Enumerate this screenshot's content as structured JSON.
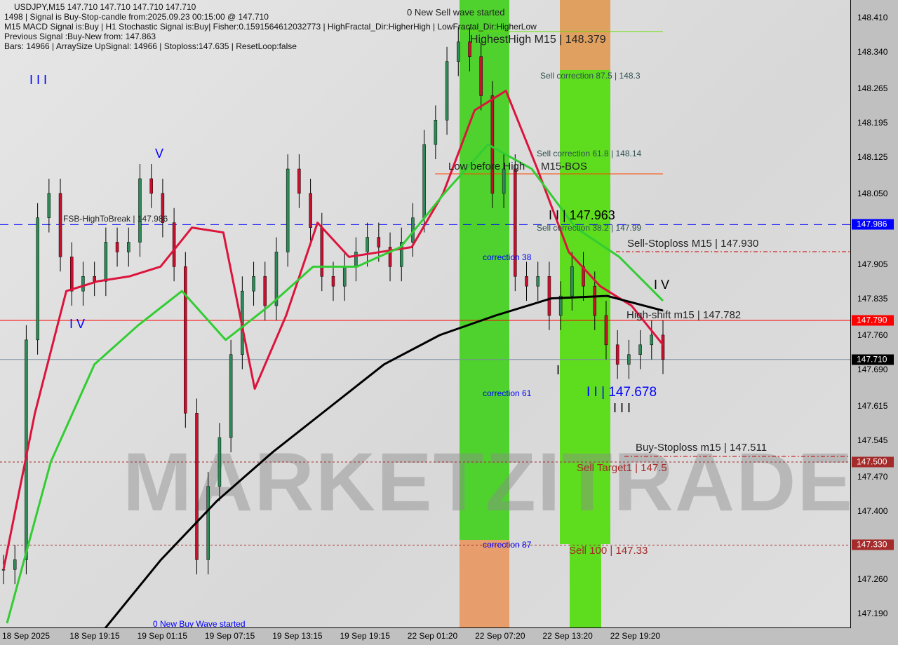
{
  "header": {
    "symbol_line": "USDJPY,M15  147.710 147.710 147.710 147.710",
    "line2": "1498 | Signal is Buy-Stop-candle from:2025.09.23 00:15:00 @ 147.710",
    "line3": "M15 MACD Signal is:Buy | H1 Stochastic Signal is:Buy| Fisher:0.1591564612032773 | HighFractal_Dir:HigherHigh | LowFractal_Dir:HigherLow",
    "line4": "Previous Signal :Buy-New from: 147.863",
    "line5": "Bars: 14966 | ArraySize UpSignal: 14966 | Stoploss:147.635 | ResetLoop:false"
  },
  "watermark": "MARKETZITRADE",
  "annotations": {
    "new_sell_wave": "0 New Sell wave started",
    "new_buy_wave": "0 New Buy Wave started",
    "highest_high": "HighestHigh   M15 | 148.379",
    "sell_corr_875": "Sell correction 87.5 | 148.3",
    "sell_corr_618": "Sell correction 61.8 | 148.14",
    "low_before_high": "Low before High",
    "bos": "M15-BOS",
    "wave_iii_high": "I I | 147.963",
    "sell_corr_382": "Sell correction 38.2 | 147.99",
    "sell_stoploss": "Sell-Stoploss M15 | 147.930",
    "correction38": "correction 38",
    "correction61": "correction 61",
    "correction87": "correction 87",
    "high_shift": "High-shift m15 | 147.782",
    "wave_ii_low": "I I | 147.678",
    "wave_iii": "I I I",
    "wave_iv_r": "I V",
    "wave_i": "I",
    "buy_stoploss": "Buy-Stoploss m15 | 147.511",
    "sell_target1": "Sell Target1 | 147.5",
    "sell_100": "Sell 100 | 147.33",
    "fsb": "FSB-HighToBreak | 147.986",
    "wave_iii_l": "I I I",
    "wave_v_l": "V",
    "wave_iv_l": "I V"
  },
  "price_tags": [
    {
      "value": "147.986",
      "color": "#0000ff"
    },
    {
      "value": "147.790",
      "color": "#ff0000"
    },
    {
      "value": "147.710",
      "color": "#000000"
    },
    {
      "value": "147.500",
      "color": "#a52a2a"
    },
    {
      "value": "147.330",
      "color": "#a52a2a"
    }
  ],
  "chart_data": {
    "type": "candlestick",
    "title": "USDJPY,M15",
    "ylim": [
      147.19,
      148.41
    ],
    "y_ticks": [
      "148.410",
      "148.340",
      "148.265",
      "148.195",
      "148.125",
      "148.050",
      "147.905",
      "147.835",
      "147.760",
      "147.690",
      "147.615",
      "147.545",
      "147.470",
      "147.400",
      "147.260",
      "147.190"
    ],
    "x_ticks": [
      "18 Sep 2025",
      "18 Sep 19:15",
      "19 Sep 01:15",
      "19 Sep 07:15",
      "19 Sep 13:15",
      "19 Sep 19:15",
      "22 Sep 01:20",
      "22 Sep 07:20",
      "22 Sep 13:20",
      "22 Sep 19:20"
    ],
    "close": [
      147.28,
      147.3,
      147.75,
      148.0,
      148.05,
      147.92,
      147.85,
      147.88,
      147.87,
      147.95,
      147.93,
      147.95,
      148.08,
      148.05,
      147.99,
      147.9,
      147.6,
      147.3,
      147.45,
      147.55,
      147.72,
      147.85,
      147.88,
      147.82,
      147.93,
      148.1,
      148.05,
      147.98,
      147.88,
      147.86,
      147.9,
      147.93,
      147.96,
      147.94,
      147.9,
      147.95,
      148.0,
      148.15,
      148.2,
      148.32,
      148.36,
      148.33,
      148.25,
      148.05,
      148.1,
      147.88,
      147.86,
      147.88,
      147.8,
      147.84,
      147.9,
      147.86,
      147.8,
      147.74,
      147.7,
      147.72,
      147.74,
      147.76,
      147.71
    ],
    "series": [
      {
        "color": "#dc143c",
        "values": [
          147.28,
          147.6,
          147.85,
          147.87,
          147.88,
          147.9,
          147.98,
          147.97,
          147.65,
          147.8,
          147.99,
          147.92,
          147.93,
          147.94,
          148.05,
          148.22,
          148.26,
          148.1,
          147.93,
          147.86,
          147.82,
          147.74
        ]
      },
      {
        "color": "#32cd32",
        "values": [
          147.17,
          147.5,
          147.7,
          147.78,
          147.85,
          147.75,
          147.82,
          147.9,
          147.9,
          147.94,
          148.05,
          148.15,
          148.1,
          147.98,
          147.92,
          147.83
        ]
      },
      {
        "color": "#000000",
        "values": [
          147.16,
          147.3,
          147.42,
          147.52,
          147.61,
          147.7,
          147.76,
          147.8,
          147.835,
          147.84,
          147.81
        ]
      }
    ],
    "hlines": [
      {
        "value": 147.986,
        "color": "#0000ff",
        "style": "dashed"
      },
      {
        "value": 147.79,
        "color": "#ff0000",
        "style": "solid"
      },
      {
        "value": 147.71,
        "color": "#7a8ca0",
        "style": "solid"
      },
      {
        "value": 147.5,
        "color": "#a52a2a",
        "style": "dotted"
      },
      {
        "value": 147.33,
        "color": "#a52a2a",
        "style": "dotted"
      }
    ]
  }
}
